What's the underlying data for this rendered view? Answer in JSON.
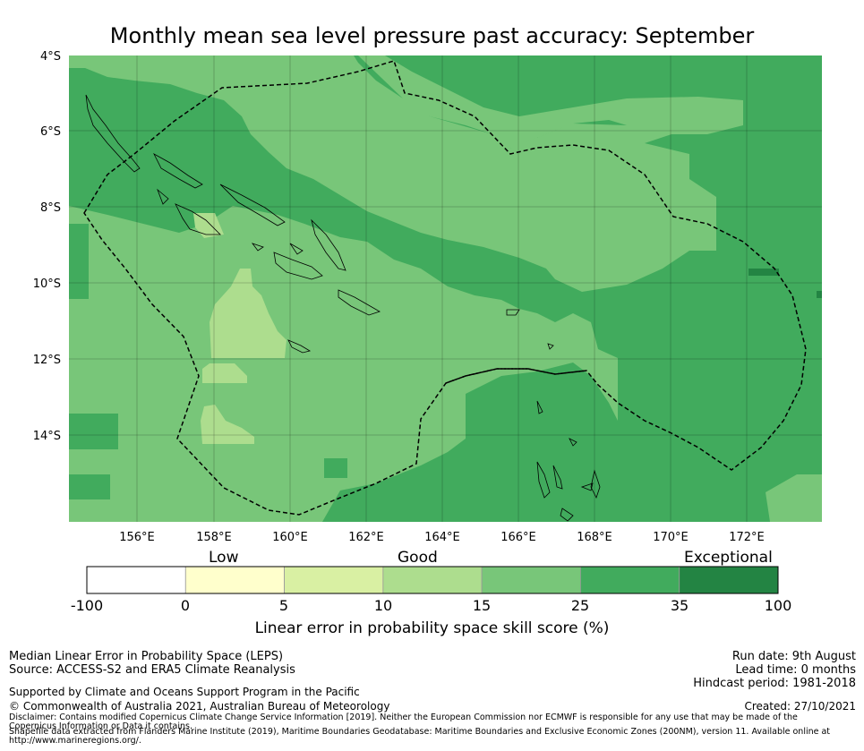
{
  "title": "Monthly mean sea level pressure past accuracy: September",
  "map": {
    "lat_labels": [
      "4°S",
      "6°S",
      "8°S",
      "10°S",
      "12°S",
      "14°S"
    ],
    "lon_labels": [
      "156°E",
      "158°E",
      "160°E",
      "162°E",
      "164°E",
      "166°E",
      "168°E",
      "170°E",
      "172°E"
    ]
  },
  "colorbar": {
    "categories": [
      "Low",
      "Good",
      "Exceptional"
    ],
    "ticks": [
      "-100",
      "0",
      "5",
      "10",
      "15",
      "25",
      "35",
      "100"
    ],
    "colors": [
      "#ffffff",
      "#ffffcc",
      "#d9f0a3",
      "#addd8e",
      "#78c679",
      "#41ab5d",
      "#238443"
    ],
    "label": "Linear error in probability space skill score (%)"
  },
  "footer": {
    "method": "Median Linear Error in Probability Space (LEPS)",
    "source": "Source: ACCESS-S2 and ERA5 Climate Reanalysis",
    "support": "Supported by Climate and Oceans Support Program in the Pacific",
    "copyright": "© Commonwealth of Australia 2021, Australian Bureau of Meteorology",
    "disclaimer": "Disclaimer: Contains modified Copernicus Climate Change Service Information [2019]. Neither the European Commission nor ECMWF is responsible for any use that may be made of the Copernicus Information or Data it contains.",
    "shapefile": "Shapefile data extracted from Flanders Marine Institute (2019), Maritime Boundaries Geodatabase: Maritime Boundaries and Exclusive Economic Zones (200NM), version 11. Available online at http://www.marineregions.org/.",
    "run_date": "Run date: 9th August",
    "lead_time": "Lead time: 0 months",
    "hindcast": "Hindcast period: 1981-2018",
    "created": "Created: 27/10/2021"
  }
}
